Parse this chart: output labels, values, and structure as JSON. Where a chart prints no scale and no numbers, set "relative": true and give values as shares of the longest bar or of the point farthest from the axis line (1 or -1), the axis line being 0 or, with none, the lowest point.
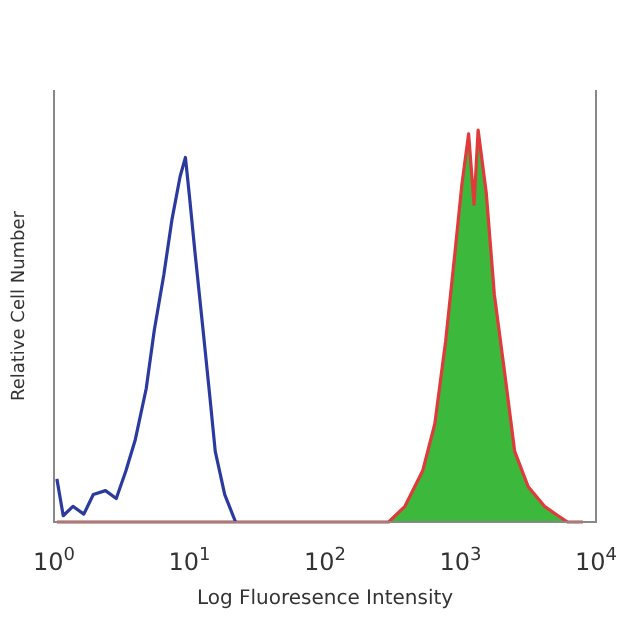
{
  "chart_data": {
    "type": "line",
    "relative": true,
    "xlabel": "Log Fluoresence Intensity",
    "ylabel": "Relative Cell Number",
    "log": "x",
    "xlim": [
      1,
      10000
    ],
    "xticks": [
      {
        "value": 1,
        "label": "10$^{0}$"
      },
      {
        "value": 10,
        "label": "10$^{1}$"
      },
      {
        "value": 100,
        "label": "10$^{2}$"
      },
      {
        "value": 1000,
        "label": "10$^{3}$"
      },
      {
        "value": 10000,
        "label": "10$^{4}$"
      }
    ],
    "series": [
      {
        "type": "area",
        "color": "#3cb83c",
        "x": [
          295,
          389,
          525,
          646,
          776,
          912,
          1023,
          1148,
          1259,
          1349,
          1549,
          1778,
          2138,
          2512,
          3162,
          4169,
          5248,
          6166
        ],
        "values": [
          0,
          0.04,
          0.13,
          0.25,
          0.46,
          0.69,
          0.86,
          0.99,
          0.81,
          1.0,
          0.84,
          0.58,
          0.37,
          0.18,
          0.09,
          0.04,
          0.016,
          0
        ]
      },
      {
        "color": "#e03a3a",
        "x": [
          1.05,
          10,
          100,
          295,
          389,
          525,
          646,
          776,
          912,
          1023,
          1148,
          1259,
          1349,
          1549,
          1778,
          2138,
          2512,
          3162,
          4169,
          5248,
          6166,
          8000
        ],
        "values": [
          0,
          0,
          0,
          0,
          0.04,
          0.13,
          0.25,
          0.46,
          0.69,
          0.86,
          0.99,
          0.81,
          1.0,
          0.84,
          0.58,
          0.37,
          0.18,
          0.09,
          0.04,
          0.016,
          0,
          0
        ]
      },
      {
        "color": "#2b3a9e",
        "x": [
          1.05,
          1.17,
          1.38,
          1.66,
          1.95,
          2.4,
          2.88,
          3.39,
          3.98,
          4.79,
          5.5,
          6.46,
          7.41,
          8.51,
          9.33,
          10,
          10.96,
          12.59,
          14.13,
          15.49,
          18.2,
          21.88
        ],
        "values": [
          0.11,
          0.016,
          0.04,
          0.02,
          0.07,
          0.08,
          0.06,
          0.13,
          0.21,
          0.34,
          0.49,
          0.63,
          0.77,
          0.88,
          0.93,
          0.83,
          0.69,
          0.49,
          0.32,
          0.18,
          0.07,
          0
        ]
      }
    ]
  }
}
